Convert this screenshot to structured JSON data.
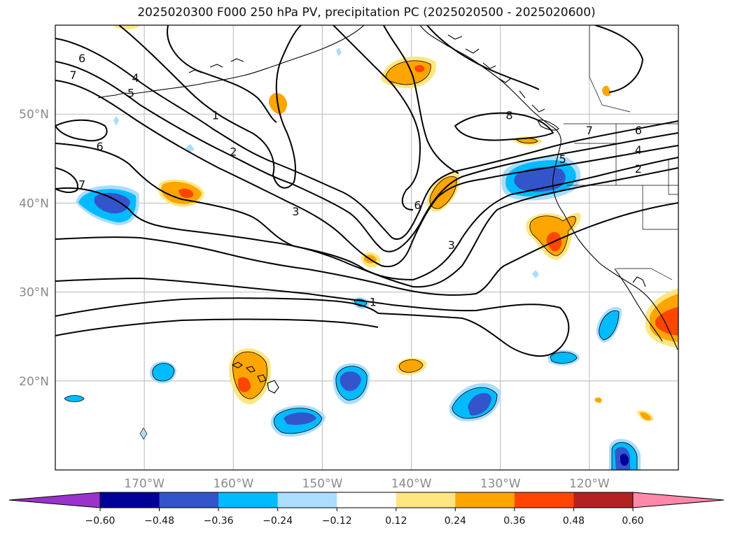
{
  "title": "2025020300 F000 250 hPa PV, precipitation PC (2025020500 - 2025020600)",
  "map": {
    "lon_ticks": [
      "170°W",
      "160°W",
      "150°W",
      "140°W",
      "130°W",
      "120°W"
    ],
    "lat_ticks": [
      "50°N",
      "40°N",
      "30°N",
      "20°N"
    ],
    "extent": {
      "lon_min": -180,
      "lon_max": -110,
      "lat_min": 10,
      "lat_max": 60
    },
    "grid": true
  },
  "contour_labels": [
    {
      "text": "6",
      "lon": -177,
      "lat": 56.3
    },
    {
      "text": "7",
      "lon": -178,
      "lat": 54.4
    },
    {
      "text": "4",
      "lon": -171,
      "lat": 54.1
    },
    {
      "text": "5",
      "lon": -171.5,
      "lat": 52.4
    },
    {
      "text": "1",
      "lon": -162,
      "lat": 49.9
    },
    {
      "text": "2",
      "lon": -160,
      "lat": 45.8
    },
    {
      "text": "6",
      "lon": -175,
      "lat": 46.4
    },
    {
      "text": "7",
      "lon": -177,
      "lat": 42.1
    },
    {
      "text": "3",
      "lon": -153,
      "lat": 39.1
    },
    {
      "text": "6",
      "lon": -139.3,
      "lat": 39.8
    },
    {
      "text": "3",
      "lon": -135.5,
      "lat": 35.3
    },
    {
      "text": "1",
      "lon": -144.3,
      "lat": 28.9
    },
    {
      "text": "8",
      "lon": -129,
      "lat": 49.9
    },
    {
      "text": "7",
      "lon": -120,
      "lat": 48.2
    },
    {
      "text": "6",
      "lon": -114.5,
      "lat": 48.2
    },
    {
      "text": "4",
      "lon": -114.5,
      "lat": 46.0
    },
    {
      "text": "2",
      "lon": -114.5,
      "lat": 43.9
    },
    {
      "text": "5",
      "lon": -123,
      "lat": 45.0
    }
  ],
  "colorbar": {
    "labels": [
      "−0.60",
      "−0.48",
      "−0.36",
      "−0.24",
      "−0.12",
      "0.12",
      "0.24",
      "0.36",
      "0.48",
      "0.60"
    ],
    "colors": [
      "#9933cc",
      "#000099",
      "#3355cc",
      "#00bbff",
      "#aaddff",
      "#ffffff",
      "#ffe680",
      "#ffa500",
      "#ff4500",
      "#b22222",
      "#ff88aa"
    ]
  }
}
